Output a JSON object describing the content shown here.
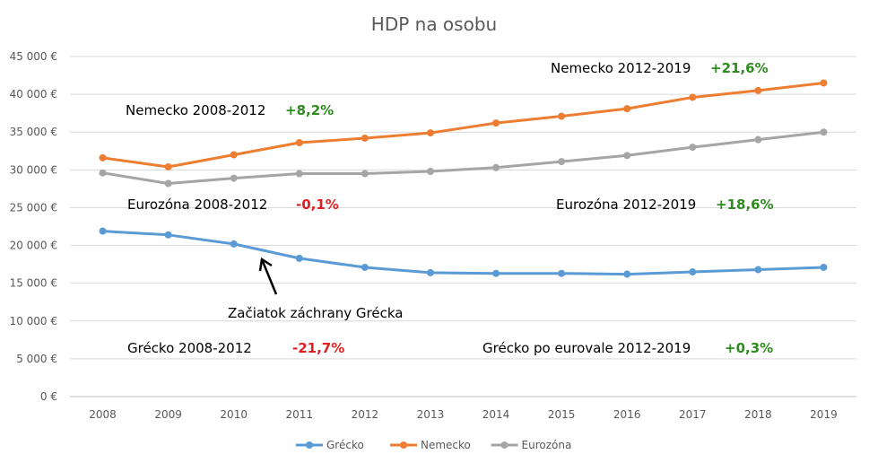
{
  "chart_data": {
    "type": "line",
    "title": "HDP na osobu",
    "xlabel": "",
    "ylabel": "",
    "ylim": [
      0,
      45000
    ],
    "grid": true,
    "legend_position": "bottom",
    "y_ticks": [
      "0 €",
      "5 000 €",
      "10 000 €",
      "15 000 €",
      "20 000 €",
      "25 000 €",
      "30 000 €",
      "35 000 €",
      "40 000 €",
      "45 000 €"
    ],
    "categories": [
      "2008",
      "2009",
      "2010",
      "2011",
      "2012",
      "2013",
      "2014",
      "2015",
      "2016",
      "2017",
      "2018",
      "2019"
    ],
    "series": [
      {
        "name": "Grécko",
        "color": "#5B9BD5",
        "values": [
          21900,
          21400,
          20200,
          18300,
          17100,
          16400,
          16300,
          16300,
          16200,
          16500,
          16800,
          17100
        ]
      },
      {
        "name": "Nemecko",
        "color": "#ED7D31",
        "values": [
          31600,
          30400,
          32000,
          33600,
          34200,
          34900,
          36200,
          37100,
          38100,
          39600,
          40500,
          41500
        ]
      },
      {
        "name": "Eurozóna",
        "color": "#A5A5A5",
        "values": [
          29600,
          28200,
          28900,
          29500,
          29500,
          29800,
          30300,
          31100,
          31900,
          33000,
          34000,
          35000
        ]
      }
    ],
    "annotations": [
      {
        "id": "de1",
        "text": "Nemecko 2008-2012",
        "value": "+8,2%",
        "value_color": "#2E8B1F"
      },
      {
        "id": "de2",
        "text": "Nemecko 2012-2019",
        "value": "+21,6%",
        "value_color": "#2E8B1F"
      },
      {
        "id": "ez1",
        "text": "Eurozóna 2008-2012",
        "value": "-0,1%",
        "value_color": "#E02020"
      },
      {
        "id": "ez2",
        "text": "Eurozóna 2012-2019",
        "value": "+18,6%",
        "value_color": "#2E8B1F"
      },
      {
        "id": "gr1",
        "text": "Grécko 2008-2012",
        "value": "-21,7%",
        "value_color": "#E02020"
      },
      {
        "id": "gr2",
        "text": "Grécko po eurovale 2012-2019",
        "value": "+0,3%",
        "value_color": "#2E8B1F"
      }
    ],
    "arrow_label": "Začiatok záchrany Grécka"
  }
}
